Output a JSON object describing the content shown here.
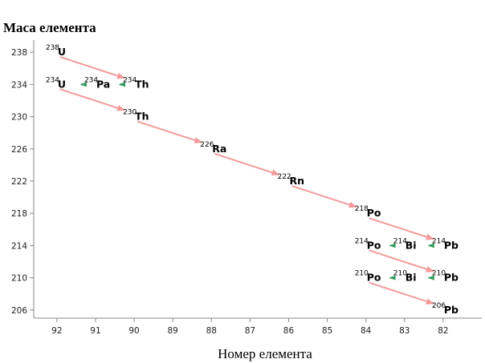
{
  "chart_data": {
    "type": "scatter",
    "title": "",
    "ylabel": "Маса елемента",
    "xlabel": "Номер елемента",
    "xlim": [
      92.6,
      81.0
    ],
    "ylim": [
      205,
      239.5
    ],
    "x_ticks": [
      92,
      91,
      90,
      89,
      88,
      87,
      86,
      85,
      84,
      83,
      82
    ],
    "y_ticks": [
      238,
      234,
      230,
      226,
      222,
      218,
      214,
      210,
      206
    ],
    "grid": false,
    "isotopes": [
      {
        "symbol": "U",
        "mass": "238",
        "x": 92,
        "y": 238
      },
      {
        "symbol": "U",
        "mass": "234",
        "x": 92,
        "y": 234
      },
      {
        "symbol": "Pa",
        "mass": "234",
        "x": 91,
        "y": 234
      },
      {
        "symbol": "Th",
        "mass": "234",
        "x": 90,
        "y": 234
      },
      {
        "symbol": "Th",
        "mass": "230",
        "x": 90,
        "y": 230
      },
      {
        "symbol": "Ra",
        "mass": "226",
        "x": 88,
        "y": 226
      },
      {
        "symbol": "Rn",
        "mass": "222",
        "x": 86,
        "y": 222
      },
      {
        "symbol": "Po",
        "mass": "218",
        "x": 84,
        "y": 218
      },
      {
        "symbol": "Pb",
        "mass": "214",
        "x": 82,
        "y": 214
      },
      {
        "symbol": "Bi",
        "mass": "214",
        "x": 83,
        "y": 214
      },
      {
        "symbol": "Po",
        "mass": "214",
        "x": 84,
        "y": 214
      },
      {
        "symbol": "Pb",
        "mass": "210",
        "x": 82,
        "y": 210
      },
      {
        "symbol": "Bi",
        "mass": "210",
        "x": 83,
        "y": 210
      },
      {
        "symbol": "Po",
        "mass": "210",
        "x": 84,
        "y": 210
      },
      {
        "symbol": "Pb",
        "mass": "206",
        "x": 82,
        "y": 206
      }
    ],
    "decays": [
      {
        "type": "alpha",
        "from": 0,
        "to": 3
      },
      {
        "type": "beta",
        "from": 3,
        "to": 2
      },
      {
        "type": "beta",
        "from": 2,
        "to": 1
      },
      {
        "type": "alpha",
        "from": 1,
        "to": 4
      },
      {
        "type": "alpha",
        "from": 4,
        "to": 5
      },
      {
        "type": "alpha",
        "from": 5,
        "to": 6
      },
      {
        "type": "alpha",
        "from": 6,
        "to": 7
      },
      {
        "type": "alpha",
        "from": 7,
        "to": 8
      },
      {
        "type": "beta",
        "from": 8,
        "to": 9
      },
      {
        "type": "beta",
        "from": 9,
        "to": 10
      },
      {
        "type": "alpha",
        "from": 10,
        "to": 11
      },
      {
        "type": "beta",
        "from": 11,
        "to": 12
      },
      {
        "type": "beta",
        "from": 12,
        "to": 13
      },
      {
        "type": "alpha",
        "from": 13,
        "to": 14
      }
    ],
    "colors": {
      "alpha": "#f59a9a",
      "beta": "#2f9a5a"
    }
  }
}
